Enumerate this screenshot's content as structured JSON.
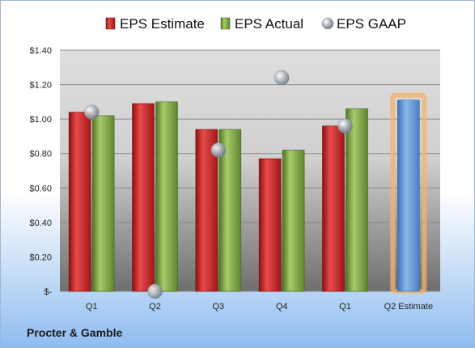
{
  "chart_data": {
    "type": "bar",
    "categories": [
      "Q1",
      "Q2",
      "Q3",
      "Q4",
      "Q1",
      "Q2 Estimate"
    ],
    "series": [
      {
        "name": "EPS Estimate",
        "values": [
          1.04,
          1.09,
          0.94,
          0.77,
          0.96,
          null
        ],
        "color": "#d42a2a"
      },
      {
        "name": "EPS Actual",
        "values": [
          1.02,
          1.1,
          0.94,
          0.82,
          1.06,
          null
        ],
        "color": "#7fa845"
      },
      {
        "name": "EPS GAAP",
        "type": "scatter",
        "values": [
          1.04,
          0.0,
          0.82,
          1.24,
          0.96,
          null
        ],
        "color": "#9aa3ad"
      },
      {
        "name": "",
        "values": [
          null,
          null,
          null,
          null,
          null,
          1.11
        ],
        "color": "#6fa0d8",
        "highlight": "#f3b46a"
      }
    ],
    "yticks": [
      "$1.40",
      "$1.20",
      "$1.00",
      "$0.80",
      "$0.60",
      "$0.40",
      "$0.20",
      "$-"
    ],
    "ylim": [
      0,
      1.4
    ],
    "grid": true,
    "legend_position": "top"
  },
  "company_name": "Procter & Gamble"
}
